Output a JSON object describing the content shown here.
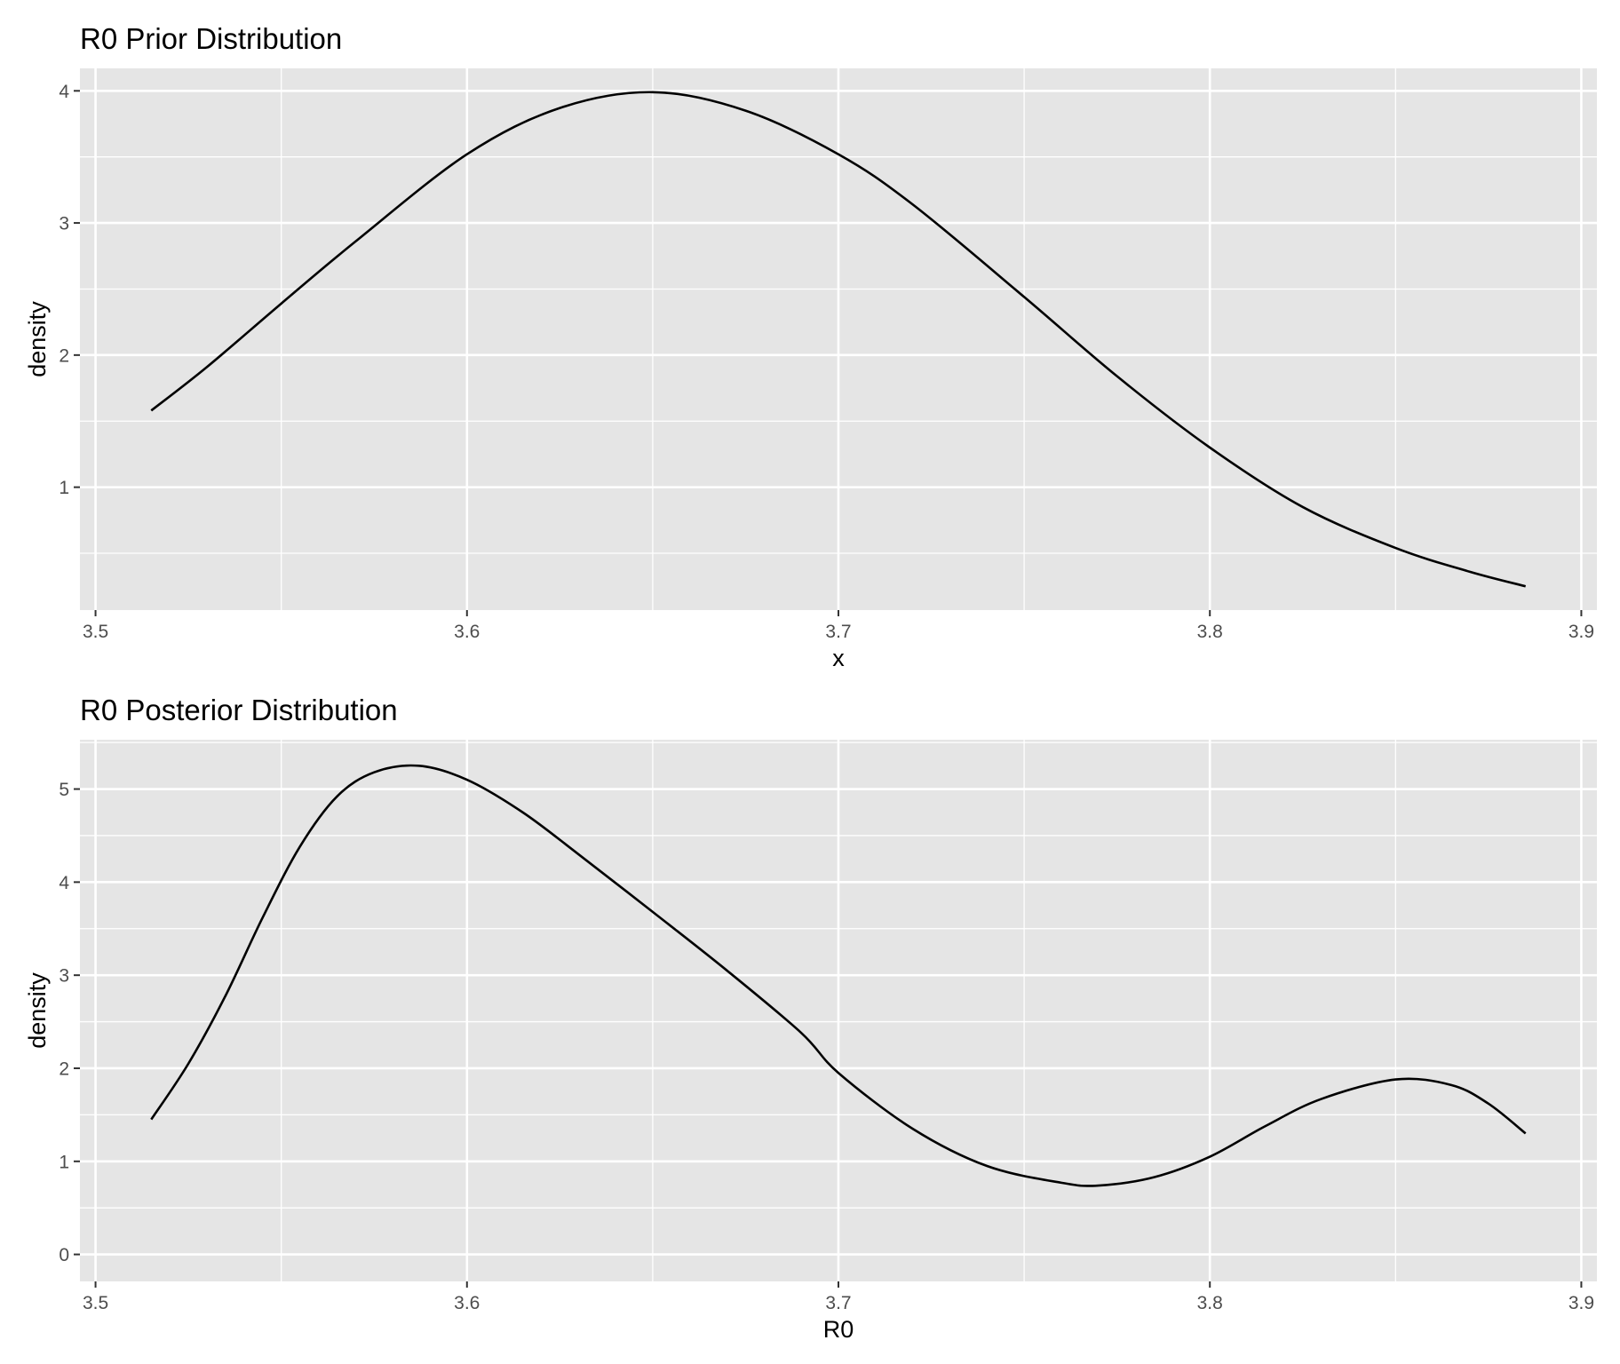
{
  "chart_data": [
    {
      "type": "line",
      "title": "R0 Prior Distribution",
      "xlabel": "x",
      "ylabel": "density",
      "xlim": [
        3.4958,
        3.9042
      ],
      "ylim": [
        0.07,
        4.17
      ],
      "x_ticks": [
        3.5,
        3.6,
        3.7,
        3.8,
        3.9
      ],
      "x_tick_labels": [
        "3.5",
        "3.6",
        "3.7",
        "3.8",
        "3.9"
      ],
      "y_ticks": [
        1,
        2,
        3,
        4
      ],
      "y_tick_labels": [
        "1",
        "2",
        "3",
        "4"
      ],
      "grid": true,
      "series": [
        {
          "x": [
            3.515,
            3.53,
            3.55,
            3.57,
            3.6,
            3.625,
            3.65,
            3.675,
            3.7,
            3.72,
            3.75,
            3.775,
            3.8,
            3.825,
            3.85,
            3.87,
            3.885
          ],
          "y": [
            1.58,
            1.91,
            2.39,
            2.86,
            3.52,
            3.87,
            3.99,
            3.85,
            3.52,
            3.14,
            2.44,
            1.84,
            1.3,
            0.85,
            0.54,
            0.36,
            0.25
          ]
        }
      ]
    },
    {
      "type": "line",
      "title": "R0 Posterior Distribution",
      "xlabel": "R0",
      "ylabel": "density",
      "xlim": [
        3.4958,
        3.9042
      ],
      "ylim": [
        -0.29,
        5.53
      ],
      "x_ticks": [
        3.5,
        3.6,
        3.7,
        3.8,
        3.9
      ],
      "x_tick_labels": [
        "3.5",
        "3.6",
        "3.7",
        "3.8",
        "3.9"
      ],
      "y_ticks": [
        0,
        1,
        2,
        3,
        4,
        5
      ],
      "y_tick_labels": [
        "0",
        "1",
        "2",
        "3",
        "4",
        "5"
      ],
      "grid": true,
      "series": [
        {
          "x": [
            3.515,
            3.525,
            3.535,
            3.545,
            3.555,
            3.565,
            3.575,
            3.587,
            3.6,
            3.615,
            3.63,
            3.65,
            3.67,
            3.69,
            3.7,
            3.72,
            3.74,
            3.76,
            3.77,
            3.785,
            3.8,
            3.815,
            3.83,
            3.85,
            3.865,
            3.875,
            3.885
          ],
          "y": [
            1.45,
            2.05,
            2.78,
            3.62,
            4.38,
            4.92,
            5.18,
            5.25,
            5.1,
            4.75,
            4.3,
            3.68,
            3.05,
            2.38,
            1.95,
            1.35,
            0.95,
            0.77,
            0.74,
            0.83,
            1.05,
            1.38,
            1.67,
            1.88,
            1.82,
            1.62,
            1.3
          ]
        }
      ]
    }
  ]
}
